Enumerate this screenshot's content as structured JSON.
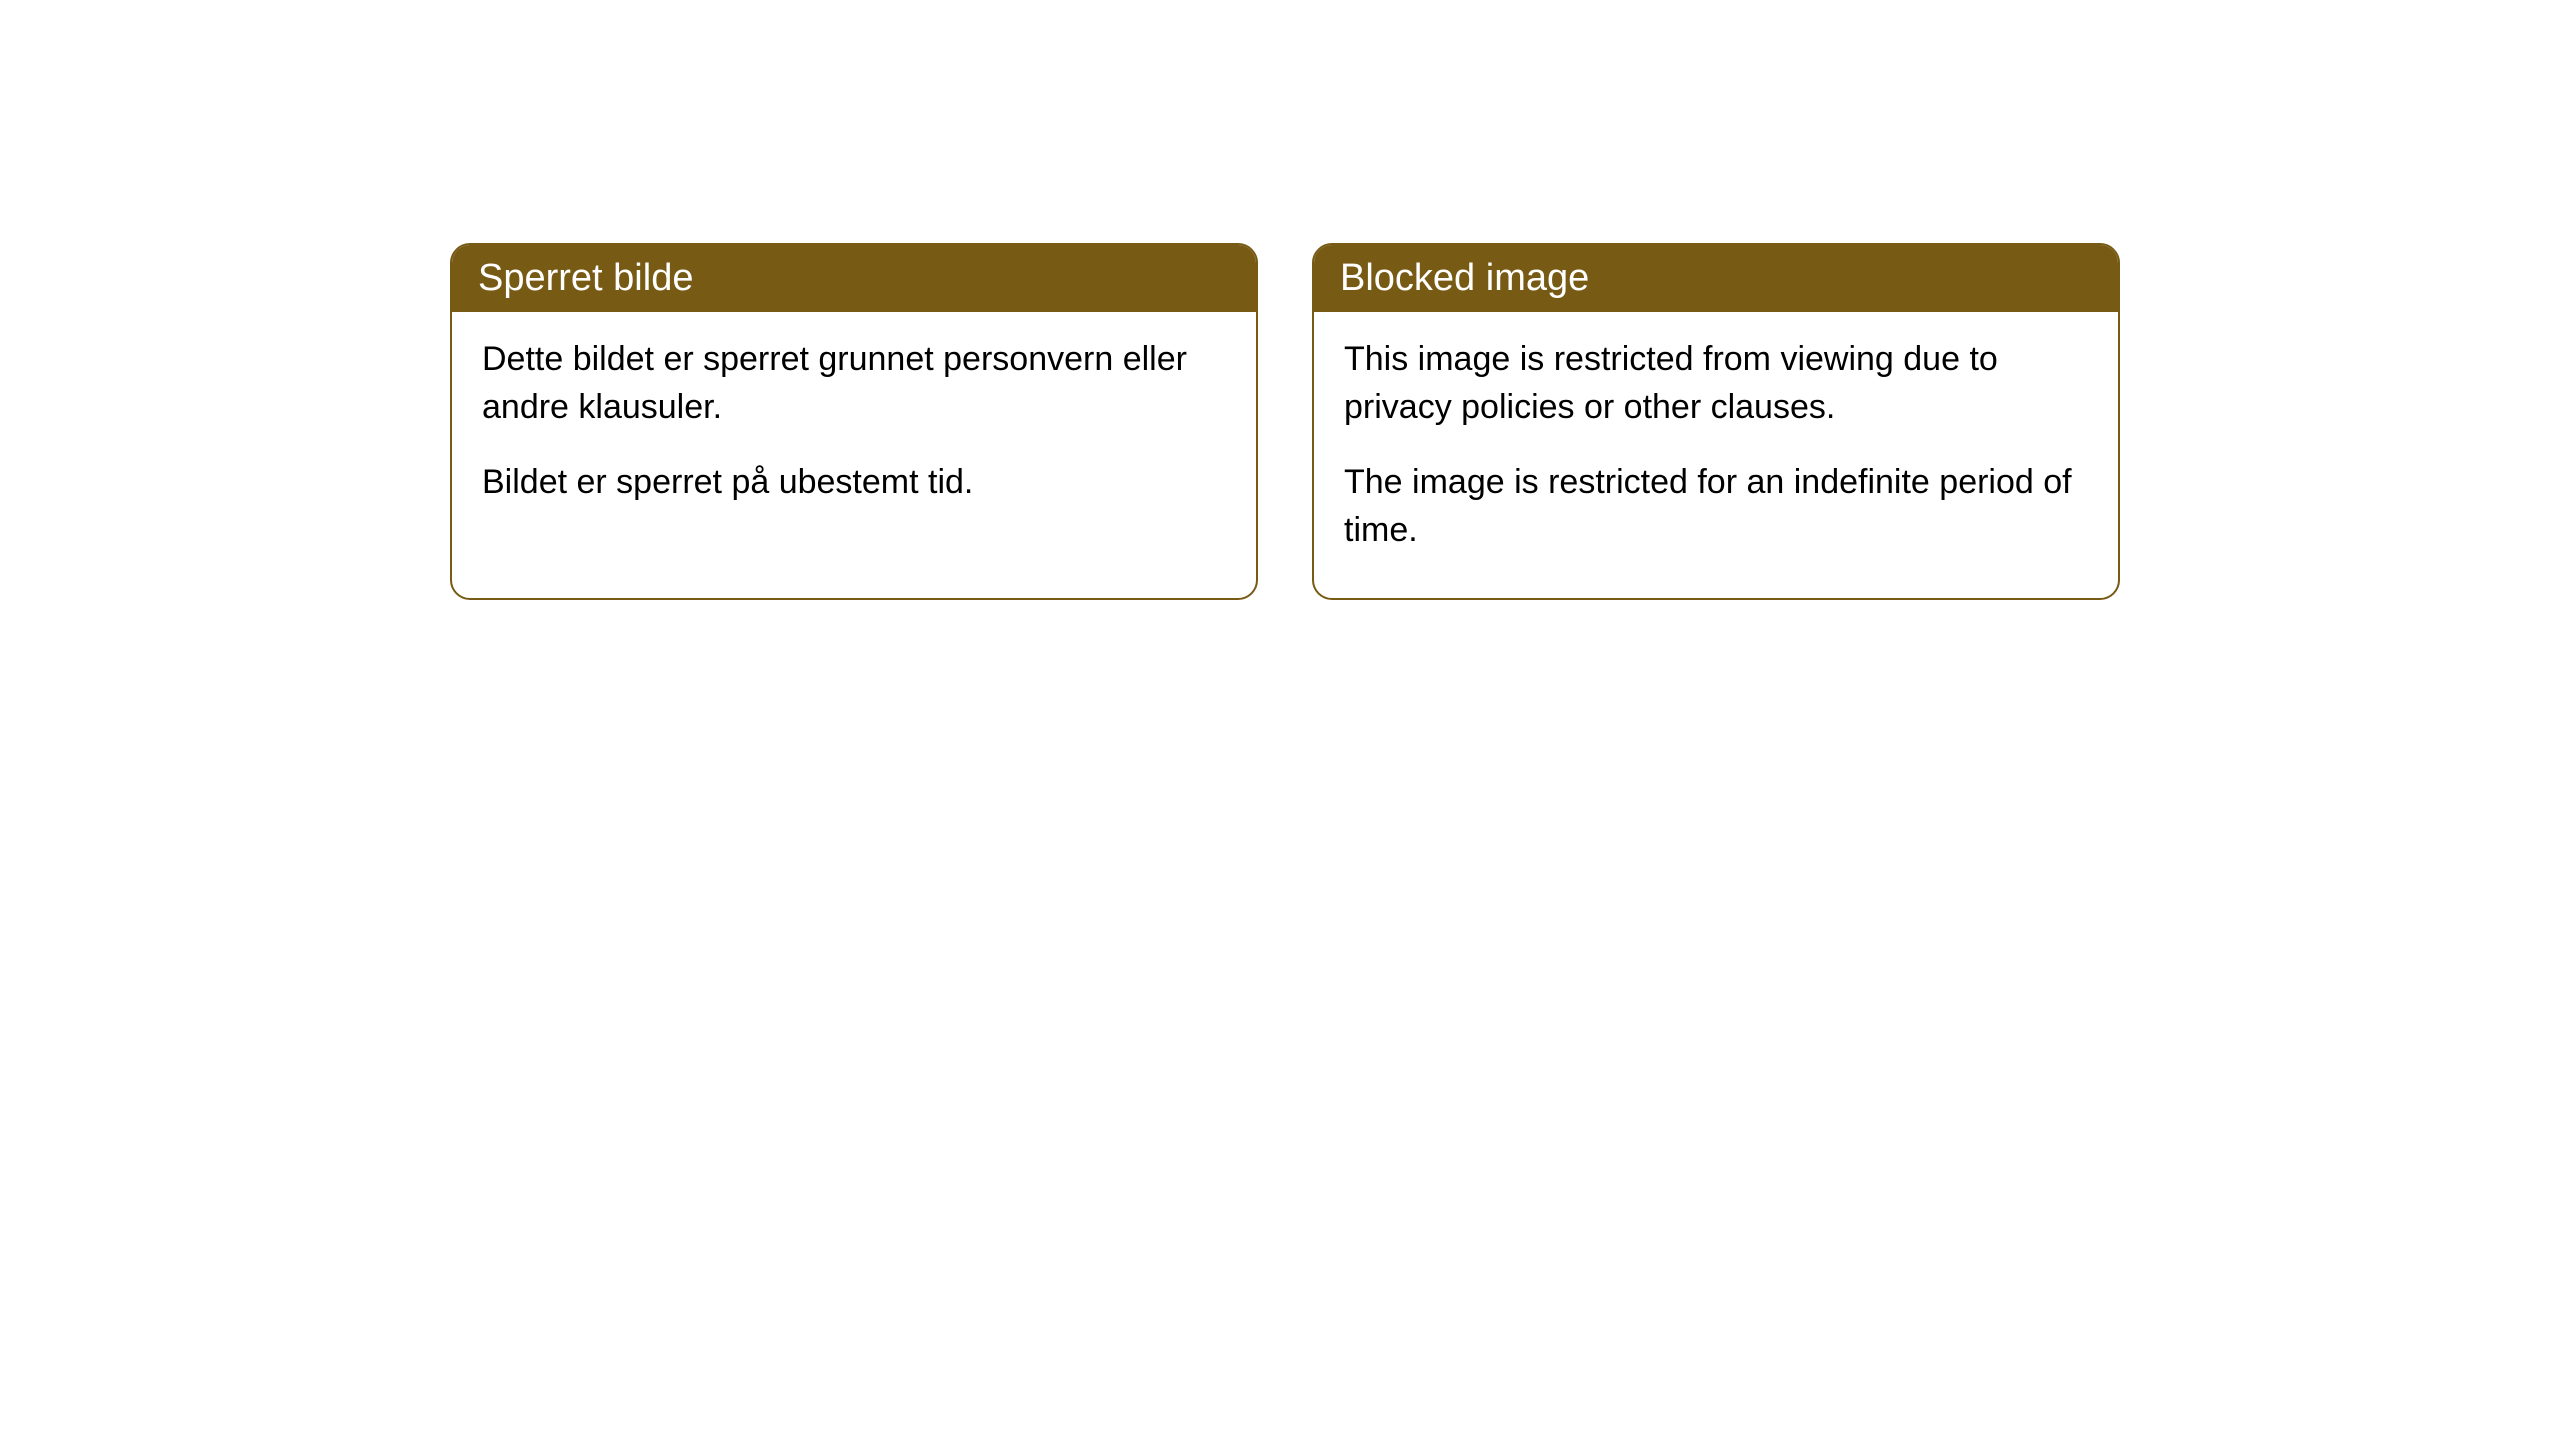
{
  "cards": [
    {
      "title": "Sperret bilde",
      "paragraph1": "Dette bildet er sperret grunnet personvern eller andre klausuler.",
      "paragraph2": "Bildet er sperret på ubestemt tid."
    },
    {
      "title": "Blocked image",
      "paragraph1": "This image is restricted from viewing due to privacy policies or other clauses.",
      "paragraph2": "The image is restricted for an indefinite period of time."
    }
  ],
  "styling": {
    "header_background": "#775a14",
    "header_text_color": "#ffffff",
    "border_color": "#775a14",
    "body_background": "#ffffff",
    "body_text_color": "#000000",
    "border_radius": 20,
    "title_fontsize": 38,
    "body_fontsize": 34
  }
}
